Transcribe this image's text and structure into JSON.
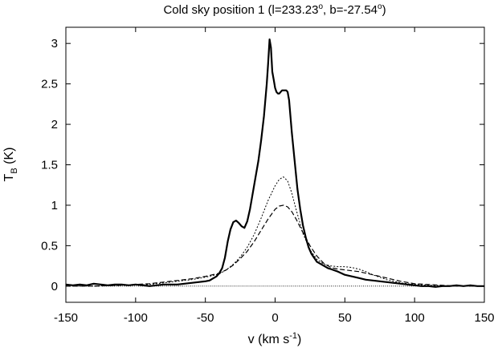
{
  "chart_data": {
    "type": "line",
    "title": "Cold sky position 1 (l=233.23°, b=-27.54°)",
    "title_parts": {
      "prefix": "Cold sky position 1 (l=233.23",
      "deg1": "o",
      "middle": ", b=-27.54",
      "deg2": "o",
      "suffix": ")"
    },
    "xlabel": "v (km s-1)",
    "xlabel_parts": {
      "main": "v (km s",
      "sup": "-1",
      "close": ")"
    },
    "ylabel": "TB (K)",
    "ylabel_parts": {
      "main": "T",
      "sub": "B",
      "rest": " (K)"
    },
    "xlim": [
      -150,
      150
    ],
    "ylim": [
      -0.2,
      3.2
    ],
    "grid": false,
    "legend": "none",
    "xticks": [
      -150,
      -100,
      -50,
      0,
      50,
      100,
      150
    ],
    "xtick_labels": [
      "-150",
      "-100",
      "-50",
      "0",
      "50",
      "100",
      "150"
    ],
    "yticks": [
      0,
      0.5,
      1,
      1.5,
      2,
      2.5,
      3
    ],
    "ytick_labels": [
      "0",
      "0.5",
      "1",
      "1.5",
      "2",
      "2.5",
      "3"
    ],
    "series": [
      {
        "style": "solid-thick",
        "x": [
          -150,
          -145,
          -140,
          -135,
          -130,
          -125,
          -120,
          -115,
          -110,
          -105,
          -100,
          -95,
          -90,
          -85,
          -80,
          -75,
          -70,
          -65,
          -60,
          -55,
          -50,
          -47,
          -45,
          -42,
          -40,
          -38,
          -36,
          -34,
          -32,
          -30,
          -28,
          -26,
          -24,
          -22,
          -20,
          -18,
          -16,
          -14,
          -12,
          -10,
          -8,
          -6,
          -5,
          -4,
          -3,
          -2,
          -1,
          0,
          1,
          2,
          3,
          4,
          5,
          6,
          7,
          8,
          9,
          10,
          11,
          12,
          14,
          16,
          18,
          20,
          22,
          24,
          26,
          28,
          30,
          32,
          35,
          38,
          40,
          45,
          50,
          55,
          60,
          65,
          70,
          75,
          80,
          85,
          90,
          95,
          100,
          105,
          110,
          115,
          120,
          125,
          130,
          135,
          140,
          145,
          150
        ],
        "y": [
          0.02,
          0.01,
          0.02,
          0.01,
          0.03,
          0.02,
          0.01,
          0.02,
          0.02,
          0.01,
          0.02,
          0.01,
          0.0,
          0.01,
          0.02,
          0.02,
          0.02,
          0.03,
          0.04,
          0.05,
          0.06,
          0.07,
          0.09,
          0.12,
          0.16,
          0.22,
          0.35,
          0.55,
          0.7,
          0.79,
          0.81,
          0.78,
          0.74,
          0.72,
          0.8,
          0.95,
          1.15,
          1.35,
          1.55,
          1.8,
          2.1,
          2.5,
          2.75,
          3.05,
          2.95,
          2.65,
          2.55,
          2.45,
          2.4,
          2.38,
          2.38,
          2.4,
          2.42,
          2.42,
          2.42,
          2.42,
          2.4,
          2.3,
          2.1,
          1.9,
          1.55,
          1.2,
          0.95,
          0.75,
          0.6,
          0.48,
          0.4,
          0.35,
          0.3,
          0.28,
          0.25,
          0.22,
          0.21,
          0.18,
          0.14,
          0.12,
          0.1,
          0.08,
          0.07,
          0.06,
          0.05,
          0.04,
          0.03,
          0.02,
          0.01,
          0.0,
          0.0,
          -0.01,
          0.0,
          0.0,
          0.01,
          0.0,
          0.01,
          0.0,
          0.0
        ]
      },
      {
        "style": "dotted",
        "x": [
          -150,
          -130,
          -110,
          -90,
          -80,
          -70,
          -60,
          -50,
          -40,
          -35,
          -30,
          -25,
          -20,
          -15,
          -10,
          -5,
          0,
          3,
          6,
          9,
          12,
          15,
          20,
          25,
          30,
          35,
          40,
          45,
          50,
          55,
          60,
          65,
          70,
          75,
          80,
          90,
          100,
          110,
          130,
          150
        ],
        "y": [
          0.0,
          0.0,
          0.01,
          0.02,
          0.04,
          0.06,
          0.08,
          0.11,
          0.15,
          0.2,
          0.27,
          0.36,
          0.48,
          0.64,
          0.84,
          1.06,
          1.24,
          1.32,
          1.35,
          1.3,
          1.15,
          0.95,
          0.65,
          0.45,
          0.33,
          0.27,
          0.25,
          0.24,
          0.24,
          0.23,
          0.21,
          0.18,
          0.14,
          0.11,
          0.08,
          0.04,
          0.02,
          0.01,
          0.0,
          0.0
        ]
      },
      {
        "style": "dashed",
        "x": [
          -150,
          -130,
          -110,
          -90,
          -80,
          -70,
          -60,
          -50,
          -40,
          -35,
          -30,
          -25,
          -20,
          -15,
          -10,
          -5,
          0,
          3,
          6,
          9,
          12,
          15,
          20,
          25,
          30,
          35,
          40,
          45,
          50,
          55,
          60,
          65,
          70,
          75,
          80,
          90,
          100,
          110,
          130,
          150
        ],
        "y": [
          0.0,
          0.0,
          0.01,
          0.03,
          0.05,
          0.07,
          0.09,
          0.12,
          0.16,
          0.2,
          0.26,
          0.34,
          0.43,
          0.55,
          0.69,
          0.83,
          0.95,
          0.99,
          1.0,
          0.98,
          0.92,
          0.83,
          0.66,
          0.5,
          0.37,
          0.28,
          0.23,
          0.21,
          0.2,
          0.19,
          0.18,
          0.16,
          0.14,
          0.12,
          0.1,
          0.06,
          0.03,
          0.02,
          0.0,
          0.0
        ]
      },
      {
        "style": "dotted-baseline",
        "x": [
          -150,
          150
        ],
        "y": [
          0,
          0
        ]
      }
    ]
  }
}
